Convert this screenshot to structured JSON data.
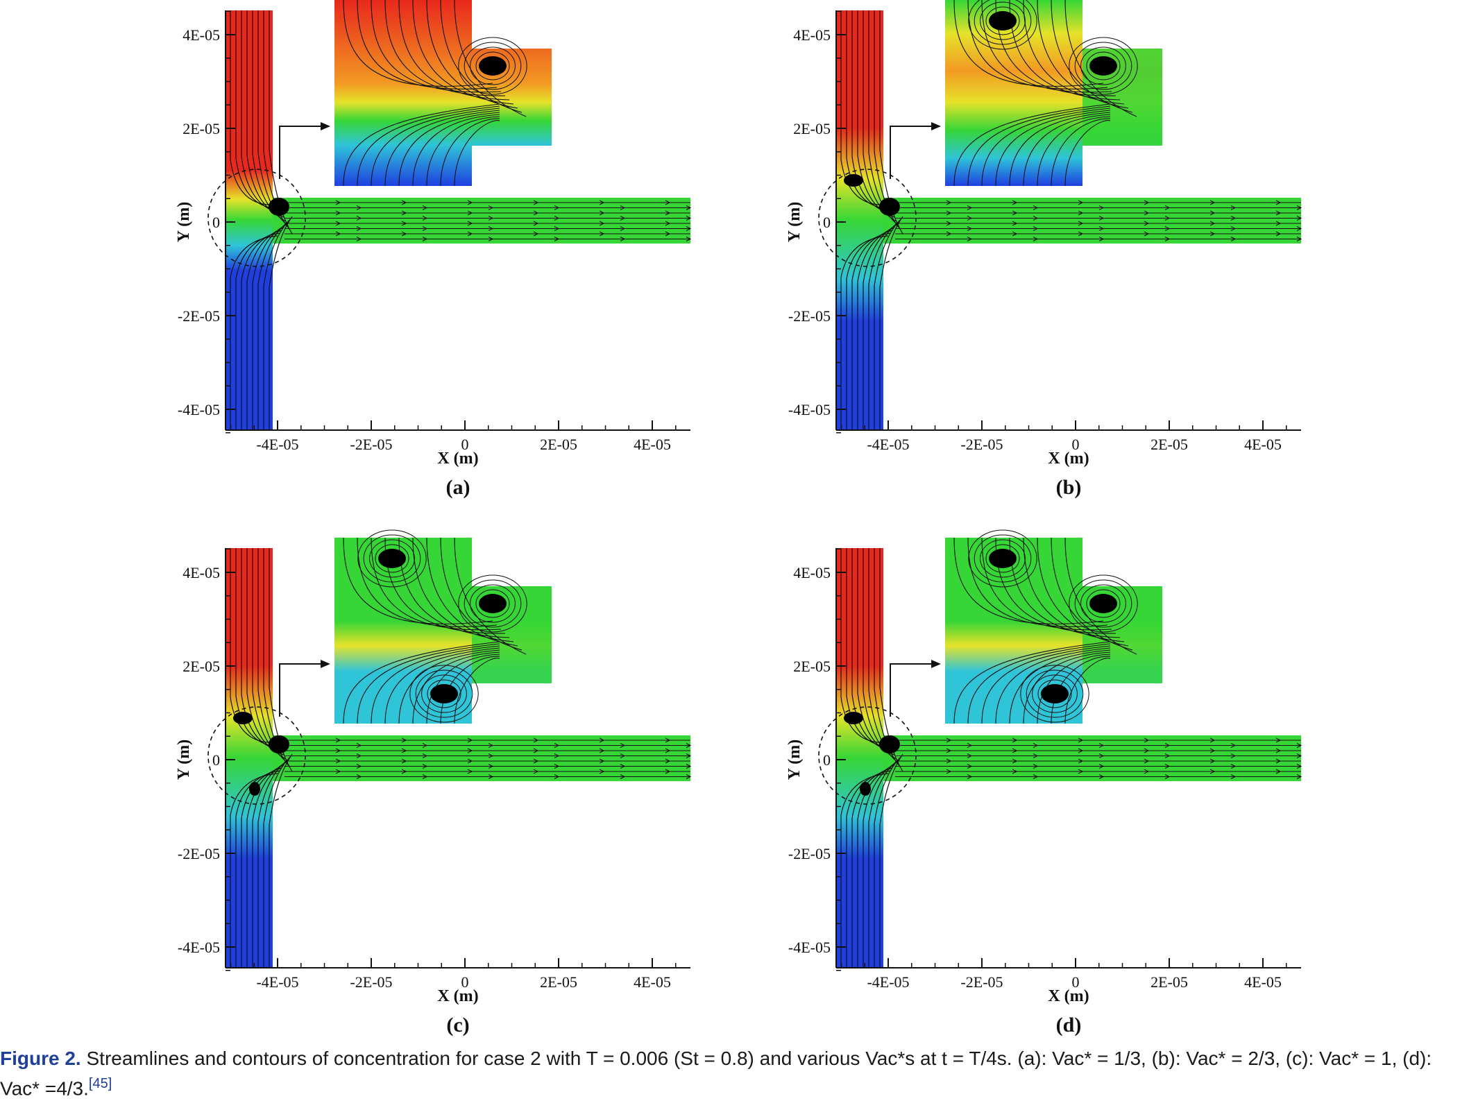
{
  "figure": {
    "axes": {
      "x_label": "X (m)",
      "y_label": "Y (m)",
      "x_ticks": [
        "-4E-05",
        "-2E-05",
        "0",
        "2E-05",
        "4E-05"
      ],
      "y_ticks": [
        "4E-05",
        "2E-05",
        "0",
        "-2E-05",
        "-4E-05"
      ]
    },
    "colors": {
      "top_inlet": "#e8281c",
      "bottom_inlet": "#1f3fe0",
      "mixed": "#36d636",
      "transition_yellow": "#e6e22a",
      "transition_cyan": "#2fc4d8"
    },
    "panels": [
      {
        "label": "(a)",
        "vac": "1/3",
        "vortex_count": 1
      },
      {
        "label": "(b)",
        "vac": "2/3",
        "vortex_count": 2
      },
      {
        "label": "(c)",
        "vac": "1",
        "vortex_count": 3
      },
      {
        "label": "(d)",
        "vac": "4/3",
        "vortex_count": 3
      }
    ]
  },
  "caption": {
    "figure_label": "Figure 2.",
    "text": "Streamlines and contours of concentration for case 2 with T = 0.006 (St = 0.8) and various Vac*s at t = T/4s. (a): Vac* = 1/3, (b): Vac* = 2/3, (c): Vac* = 1, (d): Vac* =4/3.",
    "reference": "[45]"
  }
}
